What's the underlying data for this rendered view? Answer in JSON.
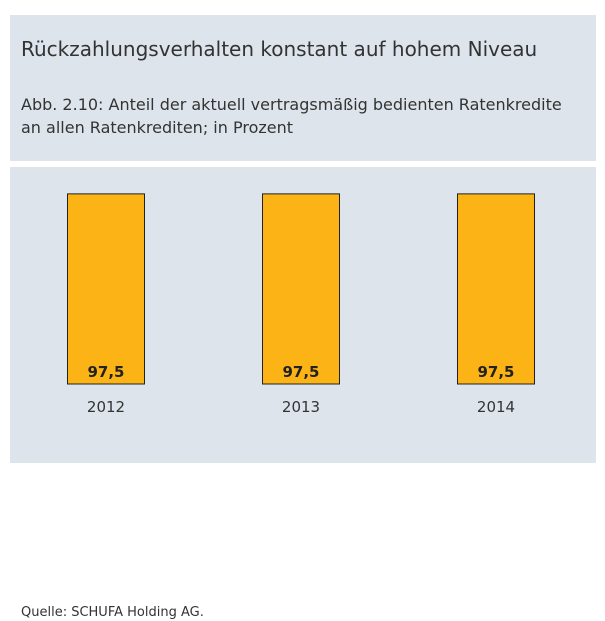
{
  "header": {
    "title": "Rückzahlungsverhalten konstant auf hohem Niveau",
    "subtitle": "Abb. 2.10: Anteil der aktuell vertragsmäßig bedienten Ratenkredite an allen Ratenkrediten; in Prozent"
  },
  "source": "Quelle: SCHUFA Holding AG.",
  "colors": {
    "bar": "#fbb316",
    "bar_border": "#222222",
    "panel": "#dde4ec"
  },
  "chart_data": {
    "type": "bar",
    "categories": [
      "2012",
      "2013",
      "2014"
    ],
    "values": [
      97.5,
      97.5,
      97.5
    ],
    "value_labels": [
      "97,5",
      "97,5",
      "97,5"
    ],
    "title": "Rückzahlungsverhalten konstant auf hohem Niveau",
    "subtitle": "Abb. 2.10: Anteil der aktuell vertragsmäßig bedienten Ratenkredite an allen Ratenkrediten; in Prozent",
    "xlabel": "",
    "ylabel": "",
    "ylim": [
      0,
      100
    ],
    "grid": false,
    "legend": "none"
  }
}
